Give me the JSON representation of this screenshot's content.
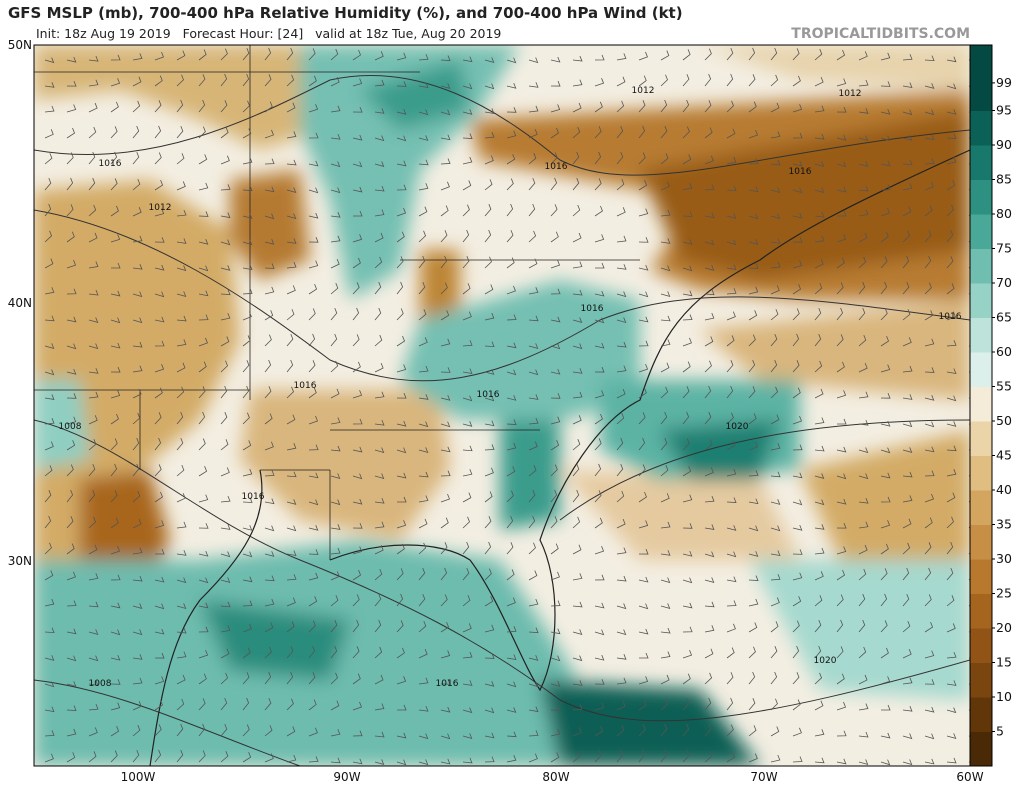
{
  "header": {
    "title": "GFS MSLP (mb), 700-400 hPa Relative Humidity (%), and 700-400 hPa Wind (kt)",
    "subtitle": "Init: 18z Aug 19 2019   Forecast Hour: [24]   valid at 18z Tue, Aug 20 2019",
    "watermark": "TROPICALTIDBITS.COM"
  },
  "map": {
    "lat_labels": [
      "50N",
      "40N",
      "30N"
    ],
    "lon_labels": [
      "100W",
      "90W",
      "80W",
      "70W",
      "60W"
    ],
    "isobar_labels": [
      "1016",
      "1012",
      "1012",
      "1012",
      "1016",
      "1016",
      "1016",
      "1016",
      "1016",
      "1016",
      "1008",
      "1020",
      "1016",
      "1020",
      "1008",
      "1016"
    ]
  },
  "colorbar": {
    "range": [
      0,
      100
    ],
    "ticks": [
      5,
      10,
      15,
      20,
      25,
      30,
      35,
      40,
      45,
      50,
      55,
      60,
      65,
      70,
      75,
      80,
      85,
      90,
      95,
      99
    ],
    "colors": [
      "#4a2a06",
      "#61370a",
      "#7a450f",
      "#925416",
      "#a6651f",
      "#b8792e",
      "#c78f45",
      "#d4a55f",
      "#e0bd80",
      "#ebd5a8",
      "#f4ecd9",
      "#dcefea",
      "#bde3db",
      "#97d2c6",
      "#6fbeb0",
      "#4aa898",
      "#2d9081",
      "#18786b",
      "#0c6157",
      "#054a42"
    ]
  }
}
